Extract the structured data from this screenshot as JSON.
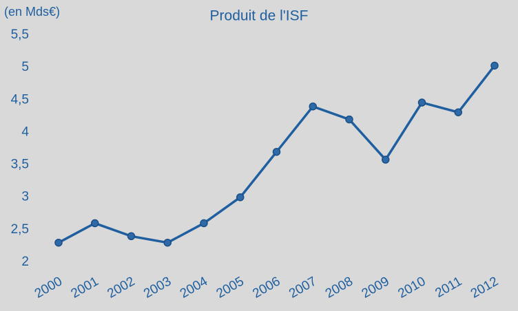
{
  "chart_data": {
    "type": "line",
    "title": "Produit de l'ISF",
    "y_label": "(en Mds€)",
    "categories": [
      "2000",
      "2001",
      "2002",
      "2003",
      "2004",
      "2005",
      "2006",
      "2007",
      "2008",
      "2009",
      "2010",
      "2011",
      "2012"
    ],
    "values": [
      2.3,
      2.6,
      2.4,
      2.3,
      2.6,
      3.0,
      3.7,
      4.4,
      4.2,
      3.58,
      4.46,
      4.31,
      5.03
    ],
    "color": "#1f5f9f",
    "ylim": [
      2,
      5.5
    ],
    "yticks": [
      2,
      {
        "value": 2.5,
        "label": "2,5"
      },
      3,
      {
        "value": 3.5,
        "label": "3,5"
      },
      4,
      {
        "value": 4.5,
        "label": "4,5"
      },
      5,
      {
        "value": 5.5,
        "label": "5,5"
      }
    ],
    "grid": false
  }
}
